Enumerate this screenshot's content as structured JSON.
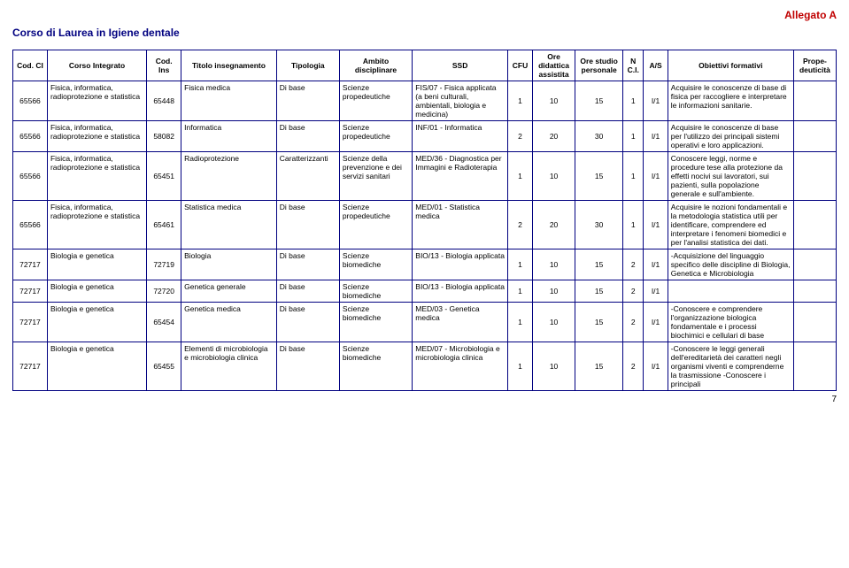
{
  "allegato": "Allegato A",
  "corso_title": "Corso di Laurea in Igiene dentale",
  "page_number": "7",
  "headers": {
    "cod_ci": "Cod. CI",
    "corso_integrato": "Corso Integrato",
    "cod_ins": "Cod. Ins",
    "titolo": "Titolo insegnamento",
    "tipologia": "Tipologia",
    "ambito": "Ambito disciplinare",
    "ssd": "SSD",
    "cfu": "CFU",
    "ore_did": "Ore didattica assistita",
    "ore_studio": "Ore studio personale",
    "nci": "N C.I.",
    "as": "A/S",
    "obiettivi": "Obiettivi formativi",
    "prope": "Prope-deuticità"
  },
  "rows": [
    {
      "cod_ci": "65566",
      "ci": "Fisica, informatica, radioprotezione e statistica",
      "cod_ins": "65448",
      "titolo": "Fisica medica",
      "tipologia": "Di base",
      "ambito": "Scienze propedeutiche",
      "ssd": "FIS/07 - Fisica applicata (a beni culturali, ambientali, biologia e medicina)",
      "cfu": "1",
      "did": "10",
      "stud": "15",
      "nci": "1",
      "as": "I/1",
      "obi": "Acquisire le conoscenze di base di fisica per raccogliere e interpretare le informazioni sanitarie."
    },
    {
      "cod_ci": "65566",
      "ci": "Fisica, informatica, radioprotezione e statistica",
      "cod_ins": "58082",
      "titolo": "Informatica",
      "tipologia": "Di base",
      "ambito": "Scienze propedeutiche",
      "ssd": "INF/01 - Informatica",
      "cfu": "2",
      "did": "20",
      "stud": "30",
      "nci": "1",
      "as": "I/1",
      "obi": "Acquisire le conoscenze di base per l'utilizzo dei principali sistemi operativi e loro applicazioni."
    },
    {
      "cod_ci": "65566",
      "ci": "Fisica, informatica, radioprotezione e statistica",
      "cod_ins": "65451",
      "titolo": "Radioprotezione",
      "tipologia": "Caratterizzanti",
      "ambito": "Scienze della prevenzione e dei servizi sanitari",
      "ssd": "MED/36 - Diagnostica per Immagini e Radioterapia",
      "cfu": "1",
      "did": "10",
      "stud": "15",
      "nci": "1",
      "as": "I/1",
      "obi": "Conoscere leggi, norme e procedure tese alla protezione da effetti nocivi sui lavoratori, sui pazienti, sulla popolazione generale e sull'ambiente."
    },
    {
      "cod_ci": "65566",
      "ci": "Fisica, informatica, radioprotezione e statistica",
      "cod_ins": "65461",
      "titolo": "Statistica medica",
      "tipologia": "Di base",
      "ambito": "Scienze propedeutiche",
      "ssd": "MED/01 - Statistica medica",
      "cfu": "2",
      "did": "20",
      "stud": "30",
      "nci": "1",
      "as": "I/1",
      "obi": "Acquisire le nozioni fondamentali e la metodologia statistica utili per identificare, comprendere ed interpretare i fenomeni biomedici e per l'analisi statistica dei dati."
    },
    {
      "cod_ci": "72717",
      "ci": "Biologia e genetica",
      "cod_ins": "72719",
      "titolo": "Biologia",
      "tipologia": "Di base",
      "ambito": "Scienze biomediche",
      "ssd": "BIO/13 - Biologia applicata",
      "cfu": "1",
      "did": "10",
      "stud": "15",
      "nci": "2",
      "as": "I/1",
      "obi": "-Acquisizione del linguaggio specifico delle discipline di Biologia, Genetica e Microbiologia"
    },
    {
      "cod_ci": "72717",
      "ci": "Biologia e genetica",
      "cod_ins": "72720",
      "titolo": "Genetica generale",
      "tipologia": "Di base",
      "ambito": "Scienze biomediche",
      "ssd": "BIO/13 - Biologia applicata",
      "cfu": "1",
      "did": "10",
      "stud": "15",
      "nci": "2",
      "as": "I/1",
      "obi": ""
    },
    {
      "cod_ci": "72717",
      "ci": "Biologia e genetica",
      "cod_ins": "65454",
      "titolo": "Genetica medica",
      "tipologia": "Di base",
      "ambito": "Scienze biomediche",
      "ssd": "MED/03 - Genetica medica",
      "cfu": "1",
      "did": "10",
      "stud": "15",
      "nci": "2",
      "as": "I/1",
      "obi": "-Conoscere e comprendere l'organizzazione biologica fondamentale e i processi biochimici e cellulari di base"
    },
    {
      "cod_ci": "72717",
      "ci": "Biologia e genetica",
      "cod_ins": "65455",
      "titolo": "Elementi di microbiologia e microbiologia clinica",
      "tipologia": "Di base",
      "ambito": "Scienze biomediche",
      "ssd": "MED/07 - Microbiologia e microbiologia clinica",
      "cfu": "1",
      "did": "10",
      "stud": "15",
      "nci": "2",
      "as": "I/1",
      "obi": "-Conoscere le leggi generali dell'ereditarietà dei caratteri negli organismi viventi e comprenderne la trasmissione\n-Conoscere i principali"
    }
  ]
}
